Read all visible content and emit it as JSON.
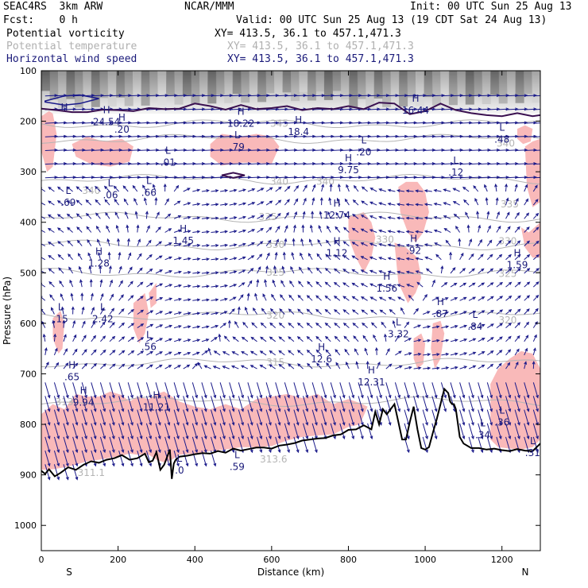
{
  "header": {
    "model": "SEAC4RS  3km ARW",
    "center": "NCAR/MMM",
    "init": "Init: 00 UTC Sun 25 Aug 13",
    "fcst": "Fcst:    0 h",
    "valid": "Valid: 00 UTC Sun 25 Aug 13 (19 CDT Sat 24 Aug 13)"
  },
  "legend": [
    {
      "label": "Potential vorticity",
      "xy": "XY= 413.5, 36.1 to 457.1,471.3",
      "color": "#000000"
    },
    {
      "label": "Potential temperature",
      "xy": "XY= 413.5, 36.1 to 457.1,471.3",
      "color": "#b4b4b4"
    },
    {
      "label": "Horizontal wind speed",
      "xy": "XY= 413.5, 36.1 to 457.1,471.3",
      "color": "#1a1a7a"
    }
  ],
  "colors": {
    "pv_fill": "#f9b9b9",
    "pv_contour": "#3a1050",
    "terrain": "#000000",
    "theta": "#b4b4b4",
    "wind": "#1a1a8a"
  },
  "chart_data": {
    "type": "cross-section",
    "xlabel": "Distance (km)",
    "ylabel": "Pressure (hPa)",
    "xlim": [
      0,
      1300
    ],
    "ylim": [
      1050,
      100
    ],
    "xticks": [
      0,
      200,
      400,
      600,
      800,
      1000,
      1200
    ],
    "yticks": [
      100,
      200,
      300,
      400,
      500,
      600,
      700,
      800,
      900,
      1000
    ],
    "x_end_labels": {
      "left": "S",
      "right": "N"
    },
    "theta_contours": [
      {
        "label": "345",
        "p": 205
      },
      {
        "label": "340",
        "p": 235
      },
      {
        "label": "340",
        "p": 315
      },
      {
        "label": "335",
        "p": 390
      },
      {
        "label": "330",
        "p": 445
      },
      {
        "label": "325",
        "p": 500
      },
      {
        "label": "320",
        "p": 585
      },
      {
        "label": "315",
        "p": 678
      },
      {
        "label": "313",
        "p": 755
      }
    ],
    "theta_labels": [
      {
        "text": "345",
        "x": 620,
        "p": 205
      },
      {
        "text": "340",
        "x": 1210,
        "p": 245
      },
      {
        "text": "340",
        "x": 620,
        "p": 320
      },
      {
        "text": "340",
        "x": 740,
        "p": 320
      },
      {
        "text": "340",
        "x": 130,
        "p": 338
      },
      {
        "text": "335",
        "x": 590,
        "p": 390
      },
      {
        "text": "335",
        "x": 1220,
        "p": 365
      },
      {
        "text": "330",
        "x": 610,
        "p": 445
      },
      {
        "text": "330",
        "x": 895,
        "p": 435
      },
      {
        "text": "330",
        "x": 1215,
        "p": 438
      },
      {
        "text": "325",
        "x": 610,
        "p": 500
      },
      {
        "text": "325",
        "x": 1215,
        "p": 503
      },
      {
        "text": "320",
        "x": 610,
        "p": 585
      },
      {
        "text": "320",
        "x": 1215,
        "p": 595
      },
      {
        "text": "315",
        "x": 610,
        "p": 678
      },
      {
        "text": "313",
        "x": 60,
        "p": 757
      },
      {
        "text": "313.6",
        "x": 605,
        "p": 870
      },
      {
        "text": "311.1",
        "x": 130,
        "p": 897
      }
    ],
    "pv_extrema": [
      {
        "type": "H",
        "value": "",
        "x": 60,
        "p": 190
      },
      {
        "type": "H",
        "value": "24.54",
        "x": 170,
        "p": 195
      },
      {
        "type": "H",
        "value": ".20",
        "x": 210,
        "p": 210
      },
      {
        "type": "L",
        "value": ".01",
        "x": 330,
        "p": 275
      },
      {
        "type": "H",
        "value": "18.22",
        "x": 520,
        "p": 198
      },
      {
        "type": "L",
        "value": ".79",
        "x": 510,
        "p": 245
      },
      {
        "type": "H",
        "value": "18.4",
        "x": 670,
        "p": 215
      },
      {
        "type": "L",
        "value": ".20",
        "x": 840,
        "p": 255
      },
      {
        "type": "H",
        "value": "9.75",
        "x": 800,
        "p": 290
      },
      {
        "type": "H",
        "value": "16.44",
        "x": 975,
        "p": 172
      },
      {
        "type": "L",
        "value": ".48",
        "x": 1200,
        "p": 230
      },
      {
        "type": "L",
        "value": ".12",
        "x": 1080,
        "p": 295
      },
      {
        "type": "L",
        "value": ".69",
        "x": 70,
        "p": 355
      },
      {
        "type": "L",
        "value": ".06",
        "x": 180,
        "p": 340
      },
      {
        "type": "L",
        "value": ".66",
        "x": 280,
        "p": 335
      },
      {
        "type": "H",
        "value": "12.74",
        "x": 770,
        "p": 380
      },
      {
        "type": "H",
        "value": "1.45",
        "x": 370,
        "p": 430
      },
      {
        "type": "H",
        "value": "1.12",
        "x": 770,
        "p": 455
      },
      {
        "type": "H",
        "value": ".92",
        "x": 970,
        "p": 450
      },
      {
        "type": "H",
        "value": "1.28",
        "x": 150,
        "p": 475
      },
      {
        "type": "H",
        "value": "1.59",
        "x": 1240,
        "p": 478
      },
      {
        "type": "H",
        "value": "1.56",
        "x": 900,
        "p": 525
      },
      {
        "type": "L",
        "value": "2.42",
        "x": 160,
        "p": 585
      },
      {
        "type": "L",
        "value": ".15",
        "x": 50,
        "p": 585
      },
      {
        "type": "H",
        "value": ".87",
        "x": 1040,
        "p": 575
      },
      {
        "type": "L",
        "value": ".84",
        "x": 1130,
        "p": 600
      },
      {
        "type": "L",
        "value": "3.32",
        "x": 930,
        "p": 615
      },
      {
        "type": "L",
        "value": ".56",
        "x": 280,
        "p": 640
      },
      {
        "type": "H",
        "value": "12.6",
        "x": 730,
        "p": 665
      },
      {
        "type": "H",
        "value": "12.31",
        "x": 860,
        "p": 710
      },
      {
        "type": "H",
        "value": ".65",
        "x": 80,
        "p": 700
      },
      {
        "type": "H",
        "value": "9.94",
        "x": 110,
        "p": 750
      },
      {
        "type": "H",
        "value": "11.21",
        "x": 300,
        "p": 760
      },
      {
        "type": "L",
        "value": ".36",
        "x": 1200,
        "p": 790
      },
      {
        "type": "L",
        "value": ".34",
        "x": 1150,
        "p": 815
      },
      {
        "type": "L",
        "value": ".31",
        "x": 1280,
        "p": 850
      },
      {
        "type": "L",
        "value": ".59",
        "x": 510,
        "p": 878
      },
      {
        "type": "L",
        "value": ".0",
        "x": 360,
        "p": 885
      }
    ],
    "terrain": {
      "x": [
        0,
        10,
        20,
        35,
        50,
        70,
        90,
        110,
        130,
        150,
        170,
        190,
        210,
        230,
        250,
        270,
        280,
        290,
        300,
        310,
        320,
        335,
        340,
        345,
        350,
        360,
        380,
        400,
        420,
        440,
        460,
        480,
        500,
        520,
        540,
        560,
        580,
        600,
        620,
        640,
        660,
        680,
        700,
        720,
        740,
        760,
        780,
        800,
        820,
        840,
        860,
        870,
        880,
        890,
        900,
        910,
        920,
        930,
        940,
        950,
        960,
        970,
        980,
        990,
        1000,
        1010,
        1020,
        1030,
        1040,
        1050,
        1060,
        1065,
        1070,
        1075,
        1080,
        1090,
        1100,
        1120,
        1140,
        1160,
        1180,
        1200,
        1220,
        1240,
        1260,
        1280,
        1300
      ],
      "p": [
        892,
        898,
        889,
        903,
        896,
        885,
        890,
        880,
        873,
        876,
        870,
        867,
        861,
        870,
        867,
        858,
        875,
        872,
        855,
        890,
        880,
        850,
        908,
        878,
        870,
        864,
        862,
        859,
        857,
        858,
        853,
        856,
        848,
        852,
        849,
        846,
        846,
        848,
        842,
        840,
        837,
        832,
        830,
        828,
        827,
        822,
        820,
        811,
        810,
        802,
        810,
        775,
        800,
        770,
        780,
        770,
        760,
        795,
        830,
        830,
        795,
        765,
        810,
        847,
        850,
        845,
        817,
        790,
        760,
        730,
        738,
        755,
        760,
        760,
        770,
        825,
        838,
        847,
        847,
        850,
        848,
        851,
        853,
        849,
        852,
        853,
        838
      ]
    },
    "tropopause_pv": {
      "x": [
        0,
        40,
        80,
        120,
        160,
        200,
        240,
        280,
        320,
        360,
        400,
        440,
        480,
        520,
        560,
        600,
        640,
        680,
        720,
        760,
        800,
        840,
        880,
        920,
        960,
        1000,
        1040,
        1080,
        1120,
        1160,
        1200,
        1240,
        1280,
        1300
      ],
      "p": [
        175,
        178,
        182,
        182,
        177,
        178,
        180,
        174,
        176,
        175,
        165,
        170,
        177,
        168,
        176,
        174,
        170,
        178,
        174,
        176,
        170,
        176,
        163,
        165,
        186,
        180,
        165,
        178,
        184,
        188,
        190,
        184,
        190,
        188
      ]
    },
    "pv_fill_patches": [
      {
        "x": [
          0,
          30,
          60,
          90,
          120,
          150,
          180,
          210,
          230,
          250,
          280,
          300,
          320,
          340,
          360,
          400,
          440,
          480,
          520,
          560,
          600,
          640,
          680,
          720,
          760,
          800,
          830,
          850,
          830,
          800,
          760,
          720,
          680,
          640,
          600,
          560,
          520,
          480,
          440,
          400,
          360,
          340,
          320,
          300,
          280,
          250,
          230,
          210,
          180,
          150,
          120,
          90,
          60,
          30,
          0
        ],
        "p": [
          780,
          760,
          770,
          740,
          745,
          745,
          735,
          742,
          755,
          745,
          750,
          740,
          735,
          745,
          755,
          765,
          770,
          760,
          770,
          750,
          745,
          740,
          748,
          740,
          760,
          750,
          758,
          765,
          800,
          805,
          820,
          822,
          825,
          832,
          843,
          845,
          845,
          850,
          853,
          858,
          860,
          870,
          875,
          870,
          860,
          860,
          858,
          862,
          866,
          870,
          873,
          880,
          885,
          889,
          890
        ]
      },
      {
        "x": [
          1170,
          1190,
          1220,
          1250,
          1280,
          1300,
          1300,
          1280,
          1250,
          1220,
          1190,
          1170
        ],
        "p": [
          720,
          690,
          670,
          655,
          660,
          690,
          830,
          845,
          850,
          848,
          845,
          830
        ]
      },
      {
        "x": [
          440,
          470,
          520,
          560,
          600,
          620,
          600,
          560,
          520,
          470,
          440
        ],
        "p": [
          245,
          225,
          230,
          225,
          230,
          250,
          285,
          282,
          282,
          288,
          270
        ]
      },
      {
        "x": [
          0,
          20,
          30,
          40,
          30,
          15,
          0
        ],
        "p": [
          190,
          180,
          185,
          225,
          290,
          300,
          260
        ]
      },
      {
        "x": [
          80,
          120,
          160,
          210,
          240,
          230,
          180,
          130,
          90
        ],
        "p": [
          245,
          230,
          240,
          235,
          250,
          280,
          290,
          285,
          270
        ]
      },
      {
        "x": [
          800,
          840,
          860,
          870,
          860,
          840,
          820,
          800
        ],
        "p": [
          390,
          380,
          400,
          430,
          470,
          500,
          470,
          430
        ]
      },
      {
        "x": [
          930,
          950,
          980,
          1000,
          1010,
          995,
          975,
          955,
          935
        ],
        "p": [
          330,
          320,
          320,
          340,
          380,
          420,
          440,
          420,
          380
        ]
      },
      {
        "x": [
          920,
          950,
          980,
          990,
          975,
          955,
          930
        ],
        "p": [
          440,
          450,
          470,
          510,
          540,
          560,
          520
        ]
      },
      {
        "x": [
          970,
          990,
          1000,
          995,
          980,
          970
        ],
        "p": [
          630,
          620,
          640,
          680,
          690,
          670
        ]
      },
      {
        "x": [
          1020,
          1040,
          1050,
          1040,
          1025,
          1015
        ],
        "p": [
          600,
          595,
          620,
          670,
          690,
          650
        ]
      },
      {
        "x": [
          1250,
          1270,
          1300,
          1300,
          1280,
          1260
        ],
        "p": [
          410,
          420,
          400,
          470,
          470,
          450
        ]
      },
      {
        "x": [
          1260,
          1280,
          1300,
          1300,
          1280,
          1265
        ],
        "p": [
          250,
          240,
          235,
          360,
          370,
          330
        ]
      },
      {
        "x": [
          1240,
          1260,
          1280,
          1275,
          1255,
          1240
        ],
        "p": [
          215,
          208,
          215,
          240,
          245,
          235
        ]
      },
      {
        "x": [
          30,
          50,
          60,
          55,
          45,
          30
        ],
        "p": [
          590,
          575,
          600,
          650,
          660,
          630
        ]
      },
      {
        "x": [
          240,
          270,
          280,
          270,
          255,
          240
        ],
        "p": [
          560,
          540,
          580,
          620,
          640,
          610
        ]
      },
      {
        "x": [
          280,
          300,
          300,
          285
        ],
        "p": [
          540,
          520,
          560,
          570
        ]
      }
    ]
  }
}
